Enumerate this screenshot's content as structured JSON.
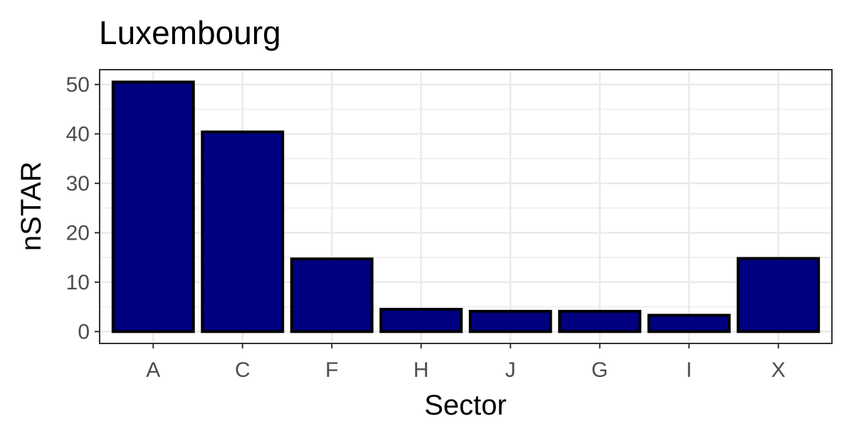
{
  "chart_data": {
    "type": "bar",
    "title": "Luxembourg",
    "xlabel": "Sector",
    "ylabel": "nSTAR",
    "categories": [
      "A",
      "C",
      "F",
      "H",
      "J",
      "G",
      "I",
      "X"
    ],
    "values": [
      50.5,
      40.4,
      14.7,
      4.5,
      4.1,
      4.1,
      3.3,
      14.8
    ],
    "ylim": [
      -2.4,
      53
    ],
    "yticks": [
      0,
      10,
      20,
      30,
      40,
      50
    ],
    "grid": true,
    "legend": "none",
    "bar_color": "#000080",
    "bar_border_color": "#000000"
  }
}
